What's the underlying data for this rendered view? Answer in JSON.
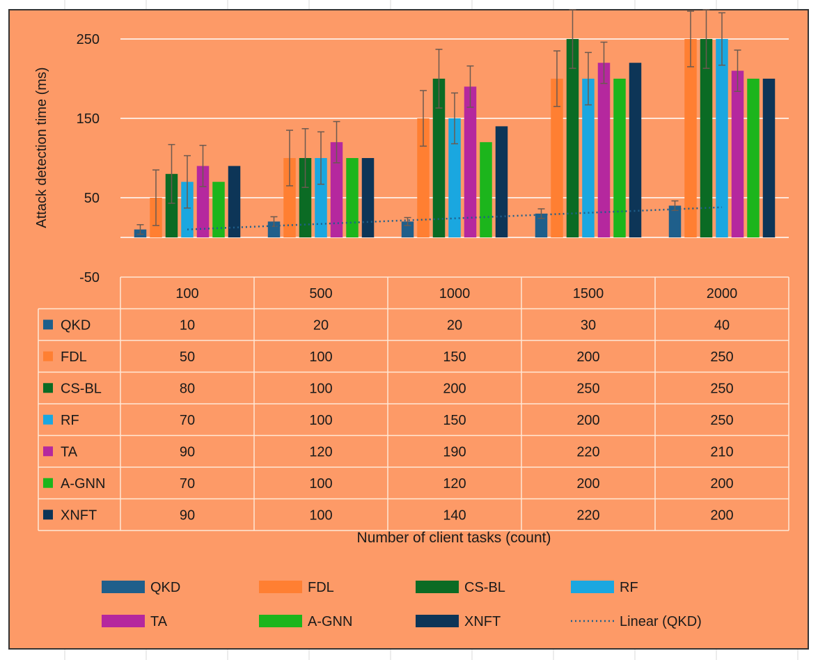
{
  "chart_data": {
    "type": "bar",
    "categories": [
      "100",
      "500",
      "1000",
      "1500",
      "2000"
    ],
    "series": [
      {
        "name": "QKD",
        "values": [
          10,
          20,
          20,
          30,
          40
        ],
        "err": [
          6,
          6,
          5,
          6,
          6
        ],
        "color": "#1f5f8b"
      },
      {
        "name": "FDL",
        "values": [
          50,
          100,
          150,
          200,
          250
        ],
        "err": [
          35,
          35,
          35,
          35,
          35
        ],
        "color": "#ff7f32"
      },
      {
        "name": "CS-BL",
        "values": [
          80,
          100,
          200,
          250,
          250
        ],
        "err": [
          37,
          37,
          37,
          37,
          37
        ],
        "color": "#0b6b24"
      },
      {
        "name": "RF",
        "values": [
          70,
          100,
          150,
          200,
          250
        ],
        "err": [
          33,
          33,
          32,
          33,
          33
        ],
        "color": "#1aa7e0"
      },
      {
        "name": "TA",
        "values": [
          90,
          120,
          190,
          220,
          210
        ],
        "err": [
          26,
          26,
          26,
          26,
          26
        ],
        "color": "#b5289e"
      },
      {
        "name": "A-GNN",
        "values": [
          70,
          100,
          120,
          200,
          200
        ],
        "err": null,
        "color": "#1cb51c"
      },
      {
        "name": "XNFT",
        "values": [
          90,
          100,
          140,
          220,
          200
        ],
        "err": null,
        "color": "#0d3557"
      }
    ],
    "trendline": {
      "name": "Linear (QKD)",
      "of": "QKD",
      "color": "#1f5f8b"
    },
    "ylabel": "Attack detection time (ms)",
    "xlabel": "Number of client tasks (count)",
    "ylim": [
      -50,
      250
    ],
    "yticks": [
      "250",
      "150",
      "50",
      "-50"
    ],
    "plot_background": "#fd9a67",
    "grid": true,
    "legend": "bottom",
    "data_table": true
  }
}
